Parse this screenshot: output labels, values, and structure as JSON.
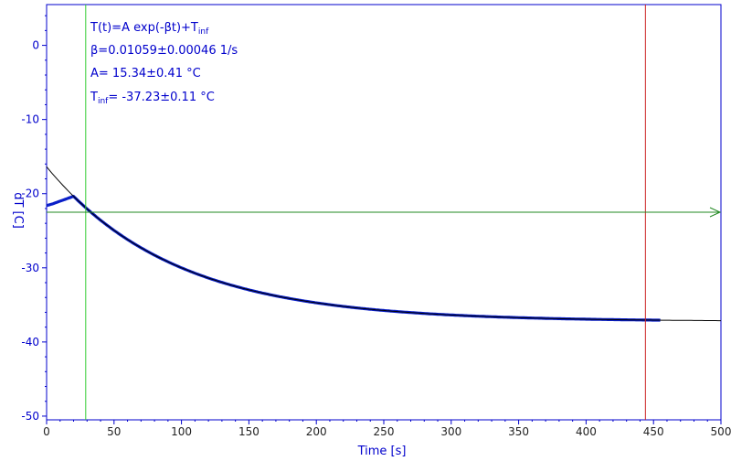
{
  "chart_data": {
    "type": "line",
    "xlabel": "Time [s]",
    "ylabel": "dT [C]",
    "xlim": [
      0,
      500
    ],
    "ylim": [
      -50.5,
      5.5
    ],
    "x_ticks": [
      0,
      50,
      100,
      150,
      200,
      250,
      300,
      350,
      400,
      450,
      500
    ],
    "y_ticks": [
      0,
      -10,
      -20,
      -30,
      -40,
      -50
    ],
    "grid": false,
    "annotations": {
      "formula": "T(t)=A exp(-βt)+T",
      "formula_sub": "inf",
      "beta": "β=0.01059±0.00046 1/s",
      "amp": "A= 15.34±0.41 °C",
      "tinf_prefix": "T",
      "tinf_sub": "inf",
      "tinf_value": "= -37.23±0.11 °C"
    },
    "fit": {
      "A": 15.34,
      "beta": 0.01059,
      "T_inf": -37.23,
      "t0": 29,
      "x_range": [
        0,
        500
      ]
    },
    "measured": {
      "t_start": 0,
      "t_end": 455,
      "initial_value": -21.6,
      "peak_t": 4,
      "peak_value": -21.4
    },
    "markers": {
      "left_vline_x": 29,
      "right_vline_x": 444,
      "hline_y": -22.5
    },
    "colors": {
      "axis": "#0000cc",
      "data": "#0a1fc8",
      "fit": "#000000",
      "left_vline": "#33cc33",
      "right_vline": "#cc2222",
      "hline": "#228822"
    }
  }
}
